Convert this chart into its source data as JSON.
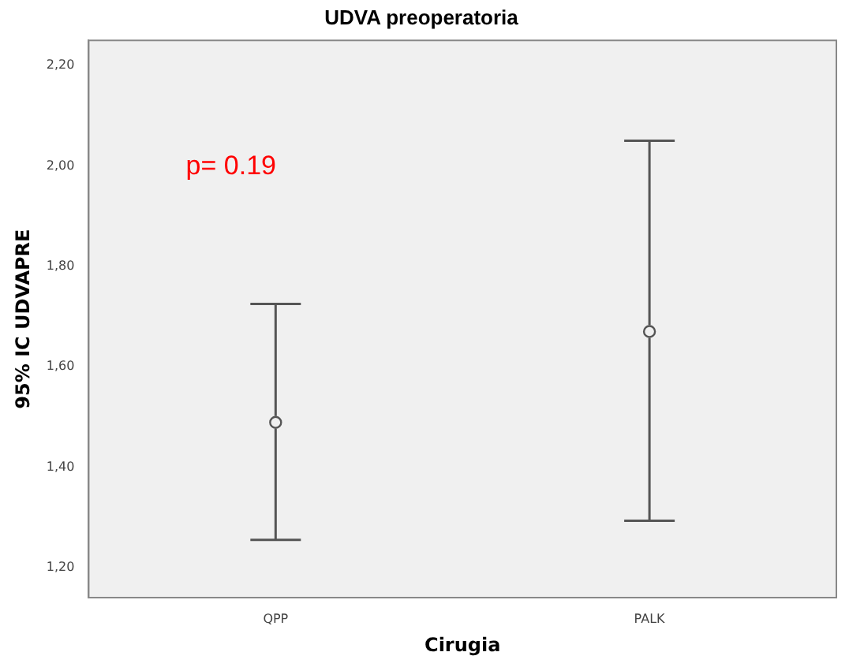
{
  "chart_data": {
    "type": "scatter",
    "title": "UDVA preoperatoria",
    "xlabel": "Cirugia",
    "ylabel": "95% IC UDVAPRE",
    "categories": [
      "QPP",
      "PALK"
    ],
    "series": [
      {
        "color": "#555555",
        "values": [
          1.489,
          1.67
        ],
        "errors": [
          [
            1.255,
            1.725
          ],
          [
            1.293,
            2.05
          ]
        ]
      }
    ],
    "ylim": [
      1.14,
      2.25
    ],
    "yticks": [
      {
        "value": 1.2,
        "label": "1,20"
      },
      {
        "value": 1.4,
        "label": "1,40"
      },
      {
        "value": 1.6,
        "label": "1,60"
      },
      {
        "value": 1.8,
        "label": "1,80"
      },
      {
        "value": 2.0,
        "label": "2,00"
      },
      {
        "value": 2.2,
        "label": "2,20"
      }
    ],
    "annotations": [
      "p= 0.19"
    ],
    "marker": "circle",
    "grid": false,
    "legend": false
  }
}
